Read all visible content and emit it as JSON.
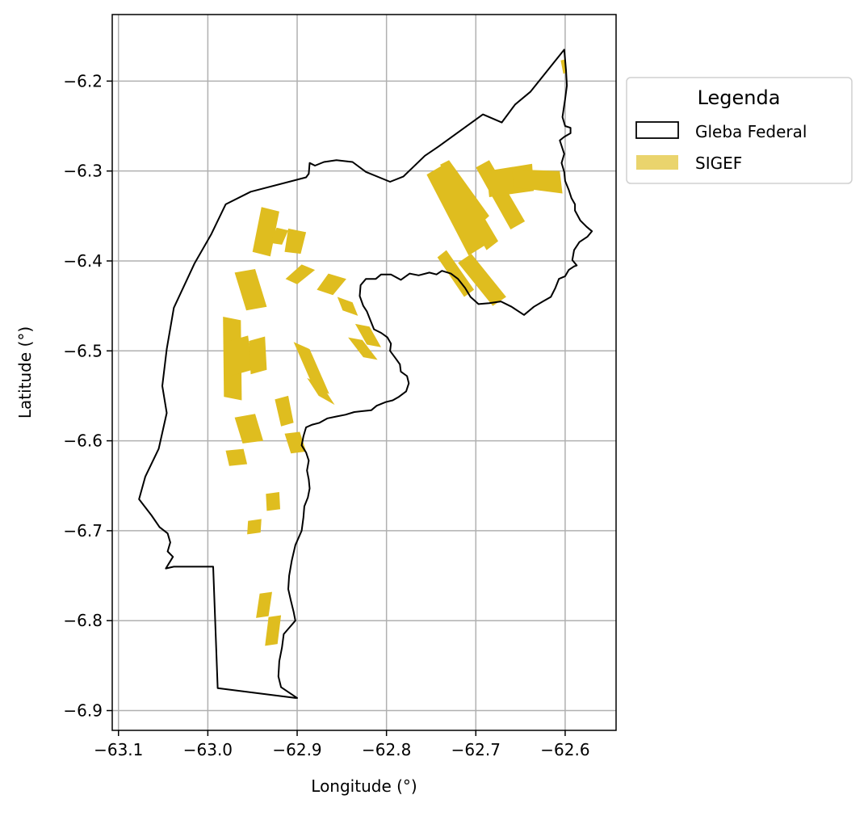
{
  "chart_data": {
    "type": "map",
    "xlabel": "Longitude (°)",
    "ylabel": "Latitude (°)",
    "xlim": [
      -63.107,
      -62.543
    ],
    "ylim": [
      -6.922,
      -6.126
    ],
    "grid": true,
    "x_ticks": [
      {
        "value": -63.1,
        "label": "−63.1"
      },
      {
        "value": -63.0,
        "label": "−63.0"
      },
      {
        "value": -62.9,
        "label": "−62.9"
      },
      {
        "value": -62.8,
        "label": "−62.8"
      },
      {
        "value": -62.7,
        "label": "−62.7"
      },
      {
        "value": -62.6,
        "label": "−62.6"
      }
    ],
    "y_ticks": [
      {
        "value": -6.2,
        "label": "−6.2"
      },
      {
        "value": -6.3,
        "label": "−6.3"
      },
      {
        "value": -6.4,
        "label": "−6.4"
      },
      {
        "value": -6.5,
        "label": "−6.5"
      },
      {
        "value": -6.6,
        "label": "−6.6"
      },
      {
        "value": -6.7,
        "label": "−6.7"
      },
      {
        "value": -6.8,
        "label": "−6.8"
      },
      {
        "value": -6.9,
        "label": "−6.9"
      }
    ],
    "legend": {
      "title": "Legenda",
      "position": "outside-upper-right",
      "entries": [
        {
          "label": "Gleba Federal",
          "style": "outline",
          "color": "#000000"
        },
        {
          "label": "SIGEF",
          "style": "fill",
          "color": "#dfbd1f"
        }
      ]
    },
    "colors": {
      "gleba_edge": "#000000",
      "sigef_fill": "#dfbd1f",
      "grid": "#b0b0b0"
    },
    "gleba_boundary": [
      [
        -62.601,
        -6.165
      ],
      [
        -62.599,
        -6.188
      ],
      [
        -62.598,
        -6.205
      ],
      [
        -62.6,
        -6.22
      ],
      [
        -62.603,
        -6.24
      ],
      [
        -62.6,
        -6.25
      ],
      [
        -62.594,
        -6.252
      ],
      [
        -62.594,
        -6.258
      ],
      [
        -62.601,
        -6.262
      ],
      [
        -62.606,
        -6.266
      ],
      [
        -62.604,
        -6.272
      ],
      [
        -62.601,
        -6.281
      ],
      [
        -62.604,
        -6.291
      ],
      [
        -62.601,
        -6.301
      ],
      [
        -62.6,
        -6.311
      ],
      [
        -62.596,
        -6.321
      ],
      [
        -62.593,
        -6.33
      ],
      [
        -62.589,
        -6.337
      ],
      [
        -62.589,
        -6.344
      ],
      [
        -62.583,
        -6.355
      ],
      [
        -62.576,
        -6.362
      ],
      [
        -62.57,
        -6.367
      ],
      [
        -62.575,
        -6.373
      ],
      [
        -62.584,
        -6.379
      ],
      [
        -62.59,
        -6.388
      ],
      [
        -62.592,
        -6.399
      ],
      [
        -62.587,
        -6.405
      ],
      [
        -62.59,
        -6.406
      ],
      [
        -62.596,
        -6.41
      ],
      [
        -62.6,
        -6.417
      ],
      [
        -62.607,
        -6.42
      ],
      [
        -62.611,
        -6.43
      ],
      [
        -62.616,
        -6.44
      ],
      [
        -62.625,
        -6.445
      ],
      [
        -62.635,
        -6.451
      ],
      [
        -62.646,
        -6.46
      ],
      [
        -62.66,
        -6.451
      ],
      [
        -62.672,
        -6.445
      ],
      [
        -62.685,
        -6.447
      ],
      [
        -62.697,
        -6.448
      ],
      [
        -62.706,
        -6.44
      ],
      [
        -62.712,
        -6.43
      ],
      [
        -62.72,
        -6.42
      ],
      [
        -62.728,
        -6.414
      ],
      [
        -62.738,
        -6.411
      ],
      [
        -62.744,
        -6.415
      ],
      [
        -62.752,
        -6.413
      ],
      [
        -62.764,
        -6.416
      ],
      [
        -62.774,
        -6.414
      ],
      [
        -62.784,
        -6.421
      ],
      [
        -62.795,
        -6.415
      ],
      [
        -62.806,
        -6.415
      ],
      [
        -62.812,
        -6.42
      ],
      [
        -62.823,
        -6.42
      ],
      [
        -62.829,
        -6.427
      ],
      [
        -62.83,
        -6.439
      ],
      [
        -62.826,
        -6.45
      ],
      [
        -62.822,
        -6.456
      ],
      [
        -62.818,
        -6.466
      ],
      [
        -62.814,
        -6.476
      ],
      [
        -62.806,
        -6.48
      ],
      [
        -62.799,
        -6.485
      ],
      [
        -62.795,
        -6.492
      ],
      [
        -62.796,
        -6.5
      ],
      [
        -62.79,
        -6.508
      ],
      [
        -62.785,
        -6.515
      ],
      [
        -62.784,
        -6.523
      ],
      [
        -62.777,
        -6.528
      ],
      [
        -62.775,
        -6.536
      ],
      [
        -62.778,
        -6.545
      ],
      [
        -62.786,
        -6.551
      ],
      [
        -62.793,
        -6.555
      ],
      [
        -62.801,
        -6.557
      ],
      [
        -62.811,
        -6.561
      ],
      [
        -62.817,
        -6.566
      ],
      [
        -62.827,
        -6.567
      ],
      [
        -62.836,
        -6.568
      ],
      [
        -62.846,
        -6.571
      ],
      [
        -62.856,
        -6.573
      ],
      [
        -62.866,
        -6.575
      ],
      [
        -62.875,
        -6.58
      ],
      [
        -62.883,
        -6.582
      ],
      [
        -62.89,
        -6.585
      ],
      [
        -62.893,
        -6.595
      ],
      [
        -62.895,
        -6.605
      ],
      [
        -62.89,
        -6.613
      ],
      [
        -62.887,
        -6.622
      ],
      [
        -62.889,
        -6.633
      ],
      [
        -62.887,
        -6.643
      ],
      [
        -62.886,
        -6.653
      ],
      [
        -62.888,
        -6.663
      ],
      [
        -62.892,
        -6.673
      ],
      [
        -62.893,
        -6.685
      ],
      [
        -62.895,
        -6.7
      ],
      [
        -62.902,
        -6.716
      ],
      [
        -62.906,
        -6.733
      ],
      [
        -62.909,
        -6.75
      ],
      [
        -62.91,
        -6.765
      ],
      [
        -62.907,
        -6.778
      ],
      [
        -62.904,
        -6.79
      ],
      [
        -62.902,
        -6.8
      ],
      [
        -62.909,
        -6.808
      ],
      [
        -62.915,
        -6.815
      ],
      [
        -62.917,
        -6.83
      ],
      [
        -62.92,
        -6.845
      ],
      [
        -62.921,
        -6.862
      ],
      [
        -62.918,
        -6.874
      ],
      [
        -62.9,
        -6.886
      ],
      [
        -62.902,
        -6.886
      ],
      [
        -62.989,
        -6.875
      ],
      [
        -62.994,
        -6.74
      ],
      [
        -63.038,
        -6.74
      ],
      [
        -63.047,
        -6.742
      ],
      [
        -63.039,
        -6.729
      ],
      [
        -63.045,
        -6.723
      ],
      [
        -63.042,
        -6.713
      ],
      [
        -63.045,
        -6.703
      ],
      [
        -63.054,
        -6.696
      ],
      [
        -63.063,
        -6.683
      ],
      [
        -63.077,
        -6.665
      ],
      [
        -63.07,
        -6.64
      ],
      [
        -63.055,
        -6.609
      ],
      [
        -63.046,
        -6.569
      ],
      [
        -63.051,
        -6.539
      ],
      [
        -63.046,
        -6.498
      ],
      [
        -63.038,
        -6.452
      ],
      [
        -63.015,
        -6.403
      ],
      [
        -62.996,
        -6.37
      ],
      [
        -62.98,
        -6.337
      ],
      [
        -62.952,
        -6.323
      ],
      [
        -62.89,
        -6.307
      ],
      [
        -62.887,
        -6.303
      ],
      [
        -62.886,
        -6.291
      ],
      [
        -62.88,
        -6.294
      ],
      [
        -62.87,
        -6.29
      ],
      [
        -62.856,
        -6.288
      ],
      [
        -62.838,
        -6.29
      ],
      [
        -62.823,
        -6.301
      ],
      [
        -62.796,
        -6.312
      ],
      [
        -62.781,
        -6.306
      ],
      [
        -62.757,
        -6.283
      ],
      [
        -62.742,
        -6.273
      ],
      [
        -62.692,
        -6.237
      ],
      [
        -62.671,
        -6.246
      ],
      [
        -62.656,
        -6.226
      ],
      [
        -62.639,
        -6.212
      ],
      [
        -62.601,
        -6.165
      ]
    ],
    "sigef_parcels": [
      [
        [
          -62.755,
          -6.304
        ],
        [
          -62.733,
          -6.291
        ],
        [
          -62.684,
          -6.379
        ],
        [
          -62.708,
          -6.394
        ]
      ],
      [
        [
          -62.74,
          -6.293
        ],
        [
          -62.73,
          -6.288
        ],
        [
          -62.685,
          -6.35
        ],
        [
          -62.696,
          -6.36
        ]
      ],
      [
        [
          -62.7,
          -6.296
        ],
        [
          -62.685,
          -6.288
        ],
        [
          -62.645,
          -6.356
        ],
        [
          -62.661,
          -6.365
        ]
      ],
      [
        [
          -62.688,
          -6.3
        ],
        [
          -62.637,
          -6.292
        ],
        [
          -62.635,
          -6.322
        ],
        [
          -62.685,
          -6.329
        ]
      ],
      [
        [
          -62.66,
          -6.298
        ],
        [
          -62.606,
          -6.3
        ],
        [
          -62.603,
          -6.325
        ],
        [
          -62.657,
          -6.318
        ]
      ],
      [
        [
          -62.713,
          -6.345
        ],
        [
          -62.7,
          -6.336
        ],
        [
          -62.675,
          -6.378
        ],
        [
          -62.688,
          -6.388
        ]
      ],
      [
        [
          -62.743,
          -6.396
        ],
        [
          -62.733,
          -6.388
        ],
        [
          -62.702,
          -6.432
        ],
        [
          -62.713,
          -6.44
        ]
      ],
      [
        [
          -62.72,
          -6.402
        ],
        [
          -62.705,
          -6.392
        ],
        [
          -62.666,
          -6.44
        ],
        [
          -62.681,
          -6.45
        ]
      ],
      [
        [
          -62.605,
          -6.177
        ],
        [
          -62.601,
          -6.176
        ],
        [
          -62.598,
          -6.19
        ],
        [
          -62.602,
          -6.192
        ]
      ],
      [
        [
          -62.94,
          -6.34
        ],
        [
          -62.92,
          -6.345
        ],
        [
          -62.93,
          -6.395
        ],
        [
          -62.95,
          -6.39
        ]
      ],
      [
        [
          -62.923,
          -6.363
        ],
        [
          -62.91,
          -6.366
        ],
        [
          -62.917,
          -6.382
        ],
        [
          -62.93,
          -6.38
        ]
      ],
      [
        [
          -62.91,
          -6.364
        ],
        [
          -62.89,
          -6.368
        ],
        [
          -62.896,
          -6.392
        ],
        [
          -62.914,
          -6.39
        ]
      ],
      [
        [
          -62.895,
          -6.404
        ],
        [
          -62.88,
          -6.41
        ],
        [
          -62.9,
          -6.426
        ],
        [
          -62.913,
          -6.42
        ]
      ],
      [
        [
          -62.865,
          -6.414
        ],
        [
          -62.845,
          -6.42
        ],
        [
          -62.86,
          -6.438
        ],
        [
          -62.878,
          -6.432
        ]
      ],
      [
        [
          -62.855,
          -6.44
        ],
        [
          -62.838,
          -6.446
        ],
        [
          -62.832,
          -6.461
        ],
        [
          -62.849,
          -6.455
        ]
      ],
      [
        [
          -62.835,
          -6.47
        ],
        [
          -62.819,
          -6.473
        ],
        [
          -62.806,
          -6.496
        ],
        [
          -62.822,
          -6.493
        ]
      ],
      [
        [
          -62.843,
          -6.485
        ],
        [
          -62.827,
          -6.488
        ],
        [
          -62.81,
          -6.51
        ],
        [
          -62.826,
          -6.507
        ]
      ],
      [
        [
          -62.97,
          -6.413
        ],
        [
          -62.947,
          -6.409
        ],
        [
          -62.934,
          -6.451
        ],
        [
          -62.957,
          -6.455
        ]
      ],
      [
        [
          -62.983,
          -6.462
        ],
        [
          -62.963,
          -6.466
        ],
        [
          -62.962,
          -6.555
        ],
        [
          -62.982,
          -6.551
        ]
      ],
      [
        [
          -62.98,
          -6.49
        ],
        [
          -62.955,
          -6.483
        ],
        [
          -62.95,
          -6.521
        ],
        [
          -62.975,
          -6.528
        ]
      ],
      [
        [
          -62.954,
          -6.489
        ],
        [
          -62.936,
          -6.484
        ],
        [
          -62.934,
          -6.521
        ],
        [
          -62.952,
          -6.526
        ]
      ],
      [
        [
          -62.97,
          -6.574
        ],
        [
          -62.947,
          -6.57
        ],
        [
          -62.938,
          -6.6
        ],
        [
          -62.961,
          -6.603
        ]
      ],
      [
        [
          -62.98,
          -6.611
        ],
        [
          -62.96,
          -6.609
        ],
        [
          -62.956,
          -6.626
        ],
        [
          -62.976,
          -6.628
        ]
      ],
      [
        [
          -62.904,
          -6.49
        ],
        [
          -62.886,
          -6.498
        ],
        [
          -62.864,
          -6.548
        ],
        [
          -62.882,
          -6.54
        ]
      ],
      [
        [
          -62.889,
          -6.53
        ],
        [
          -62.871,
          -6.54
        ],
        [
          -62.858,
          -6.56
        ],
        [
          -62.876,
          -6.55
        ]
      ],
      [
        [
          -62.925,
          -6.554
        ],
        [
          -62.91,
          -6.55
        ],
        [
          -62.904,
          -6.58
        ],
        [
          -62.918,
          -6.584
        ]
      ],
      [
        [
          -62.914,
          -6.592
        ],
        [
          -62.897,
          -6.59
        ],
        [
          -62.89,
          -6.612
        ],
        [
          -62.907,
          -6.614
        ]
      ],
      [
        [
          -62.935,
          -6.659
        ],
        [
          -62.92,
          -6.657
        ],
        [
          -62.919,
          -6.676
        ],
        [
          -62.934,
          -6.678
        ]
      ],
      [
        [
          -62.955,
          -6.689
        ],
        [
          -62.94,
          -6.687
        ],
        [
          -62.941,
          -6.702
        ],
        [
          -62.956,
          -6.704
        ]
      ],
      [
        [
          -62.942,
          -6.77
        ],
        [
          -62.928,
          -6.768
        ],
        [
          -62.932,
          -6.795
        ],
        [
          -62.946,
          -6.797
        ]
      ],
      [
        [
          -62.932,
          -6.796
        ],
        [
          -62.918,
          -6.794
        ],
        [
          -62.922,
          -6.826
        ],
        [
          -62.936,
          -6.828
        ]
      ]
    ]
  }
}
